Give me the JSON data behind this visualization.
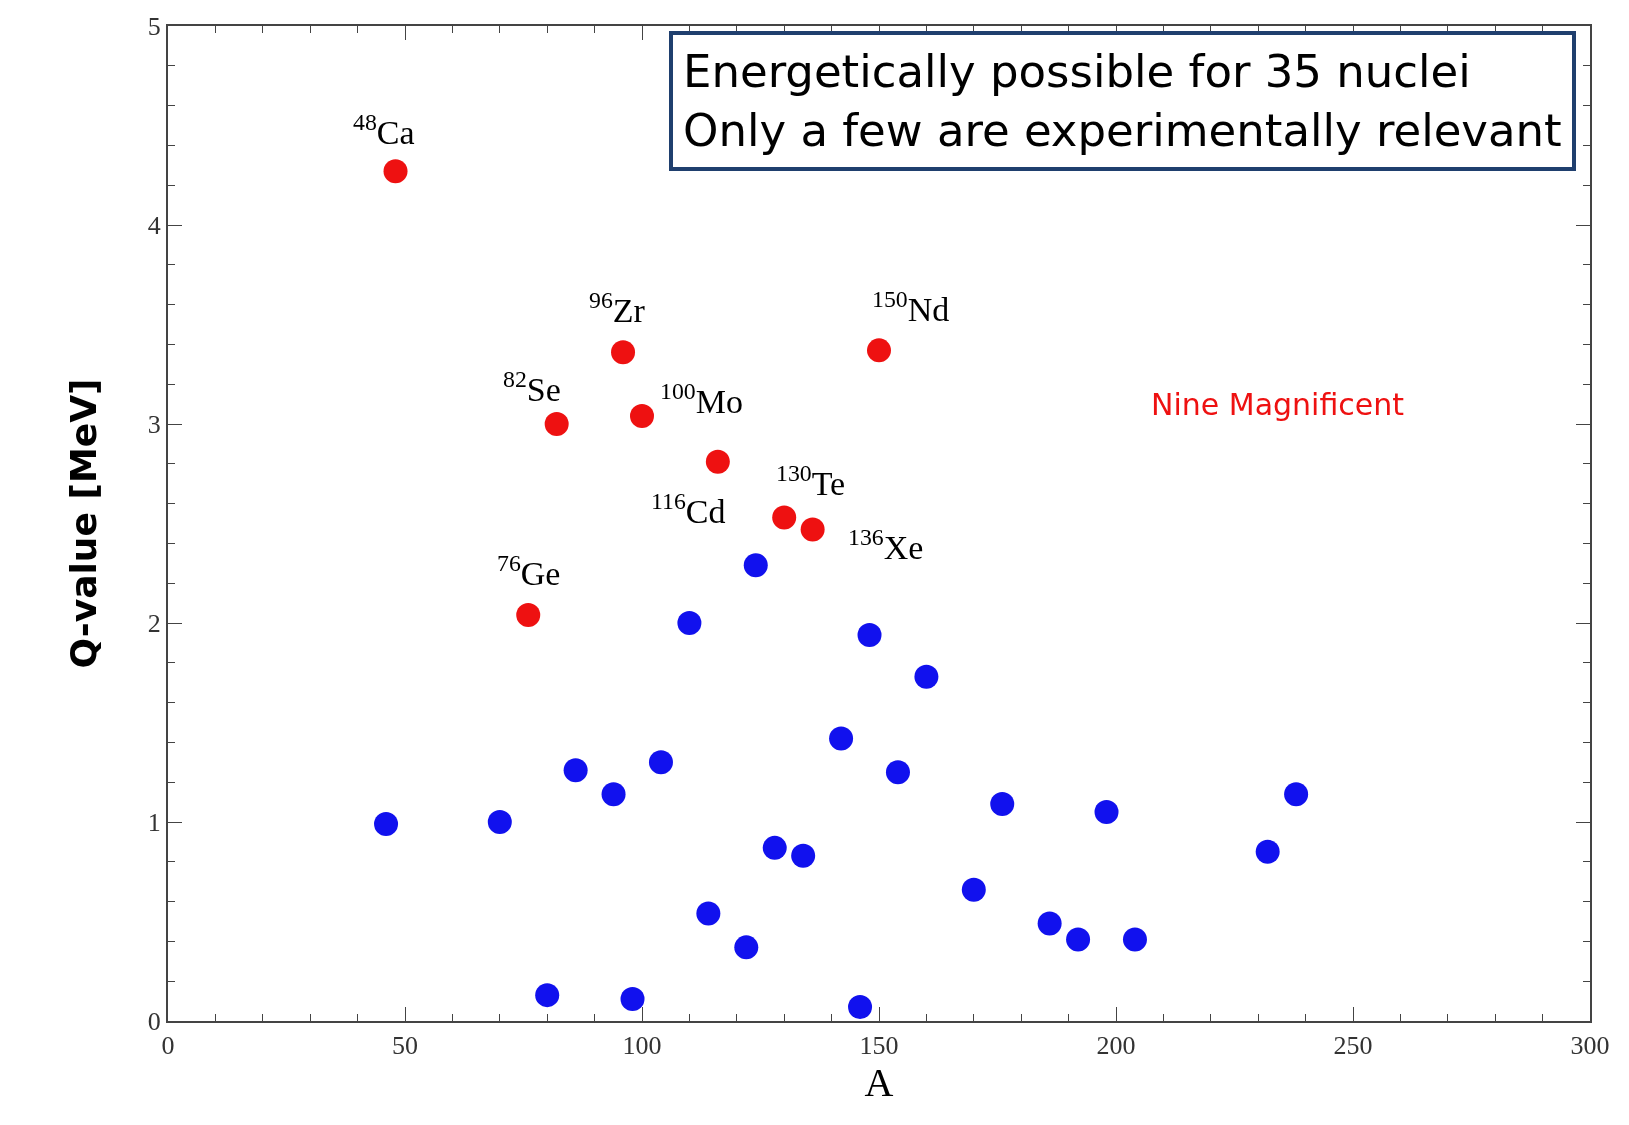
{
  "chart_data": {
    "type": "scatter",
    "xlabel": "A",
    "ylabel": "Q-value [MeV]",
    "xlim": [
      0,
      300
    ],
    "ylim": [
      0,
      5
    ],
    "xticks": [
      0,
      {
        "value": 10,
        "label": null
      },
      {
        "value": 20,
        "label": null
      },
      {
        "value": 30,
        "label": null
      },
      {
        "value": 40,
        "label": null
      },
      50,
      {
        "value": 60,
        "label": null
      },
      {
        "value": 70,
        "label": null
      },
      {
        "value": 80,
        "label": null
      },
      {
        "value": 90,
        "label": null
      },
      100,
      {
        "value": 110,
        "label": null
      },
      {
        "value": 120,
        "label": null
      },
      {
        "value": 130,
        "label": null
      },
      {
        "value": 140,
        "label": null
      },
      150,
      {
        "value": 160,
        "label": null
      },
      {
        "value": 170,
        "label": null
      },
      {
        "value": 180,
        "label": null
      },
      {
        "value": 190,
        "label": null
      },
      200,
      {
        "value": 210,
        "label": null
      },
      {
        "value": 220,
        "label": null
      },
      {
        "value": 230,
        "label": null
      },
      {
        "value": 240,
        "label": null
      },
      250,
      {
        "value": 260,
        "label": null
      },
      {
        "value": 270,
        "label": null
      },
      {
        "value": 280,
        "label": null
      },
      {
        "value": 290,
        "label": null
      },
      300
    ],
    "yticks": [
      0,
      {
        "value": 0.2,
        "label": null
      },
      {
        "value": 0.4,
        "label": null
      },
      {
        "value": 0.6,
        "label": null
      },
      {
        "value": 0.8,
        "label": null
      },
      1,
      {
        "value": 1.2,
        "label": null
      },
      {
        "value": 1.4,
        "label": null
      },
      {
        "value": 1.6,
        "label": null
      },
      {
        "value": 1.8,
        "label": null
      },
      2,
      {
        "value": 2.2,
        "label": null
      },
      {
        "value": 2.4,
        "label": null
      },
      {
        "value": 2.6,
        "label": null
      },
      {
        "value": 2.8,
        "label": null
      },
      3,
      {
        "value": 3.2,
        "label": null
      },
      {
        "value": 3.4,
        "label": null
      },
      {
        "value": 3.6,
        "label": null
      },
      {
        "value": 3.8,
        "label": null
      },
      4,
      {
        "value": 4.2,
        "label": null
      },
      {
        "value": 4.4,
        "label": null
      },
      {
        "value": 4.6,
        "label": null
      },
      {
        "value": 4.8,
        "label": null
      },
      5
    ],
    "legend": false,
    "marker": "circle",
    "series": [
      {
        "name": "Nine Magnificent",
        "color": "#ee1111",
        "x": [
          48,
          76,
          82,
          96,
          100,
          116,
          130,
          136,
          150
        ],
        "values": [
          4.27,
          2.04,
          3.0,
          3.36,
          3.04,
          2.81,
          2.53,
          2.47,
          3.37
        ]
      },
      {
        "color": "#1111ee",
        "x": [
          46,
          70,
          80,
          86,
          94,
          98,
          104,
          110,
          114,
          122,
          124,
          128,
          134,
          142,
          146,
          148,
          154,
          160,
          170,
          176,
          186,
          192,
          198,
          204,
          232,
          238
        ],
        "values": [
          0.99,
          1.0,
          0.13,
          1.26,
          1.14,
          0.11,
          1.3,
          2.0,
          0.54,
          0.37,
          2.29,
          0.87,
          0.83,
          1.42,
          0.07,
          1.94,
          1.25,
          1.73,
          0.66,
          1.09,
          0.49,
          0.41,
          1.05,
          0.41,
          0.85,
          1.14
        ]
      }
    ],
    "annotations": [
      {
        "text": "$^{48}$Ca",
        "x": 48,
        "y": 4.27
      },
      {
        "text": "$^{76}$Ge",
        "x": 76,
        "y": 2.04
      },
      {
        "text": "$^{82}$Se",
        "x": 82,
        "y": 3.0
      },
      {
        "text": "$^{96}$Zr",
        "x": 96,
        "y": 3.36
      },
      {
        "text": "$^{100}$Mo",
        "x": 100,
        "y": 3.04
      },
      {
        "text": "$^{116}$Cd",
        "x": 116,
        "y": 2.81
      },
      {
        "text": "$^{130}$Te",
        "x": 130,
        "y": 2.53
      },
      {
        "text": "$^{136}$Xe",
        "x": 136,
        "y": 2.47
      },
      {
        "text": "$^{150}$Nd",
        "x": 150,
        "y": 3.37
      },
      "Energetically possible for 35 nuclei",
      "Only a few are experimentally relevant"
    ]
  }
}
